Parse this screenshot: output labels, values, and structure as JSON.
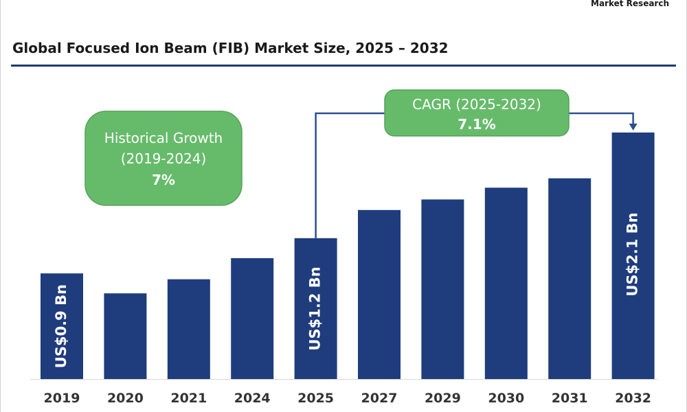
{
  "header": {
    "brand": "Market Research",
    "title": "Global Focused Ion Beam (FIB) Market Size, 2025 – 2032"
  },
  "colors": {
    "bar": "#1f3d7d",
    "callout": "#66bb6a",
    "callout_border": "#56a05a",
    "rule": "#1f3a73",
    "connector": "#2a4f93"
  },
  "callouts": {
    "historical": {
      "line1": "Historical Growth",
      "line2": "(2019-2024)",
      "value": "7%"
    },
    "cagr": {
      "line1": "CAGR (2025-2032)",
      "value": "7.1%"
    }
  },
  "chart_data": {
    "type": "bar",
    "title": "Global Focused Ion Beam (FIB) Market Size, 2025 – 2032",
    "xlabel": "",
    "ylabel": "",
    "categories": [
      "2019",
      "2020",
      "2021",
      "2024",
      "2025",
      "2027",
      "2029",
      "2030",
      "2031",
      "2032"
    ],
    "series": [
      {
        "values": [
          0.9,
          0.73,
          0.85,
          1.03,
          1.2,
          1.44,
          1.53,
          1.63,
          1.71,
          2.1
        ]
      }
    ],
    "data_labels": [
      {
        "category": "2019",
        "text": "US$0.9 Bn"
      },
      {
        "category": "2025",
        "text": "US$1.2 Bn"
      },
      {
        "category": "2032",
        "text": "US$2.1 Bn"
      }
    ],
    "ylim": [
      0,
      2.1
    ],
    "grid": false,
    "legend": "none"
  }
}
